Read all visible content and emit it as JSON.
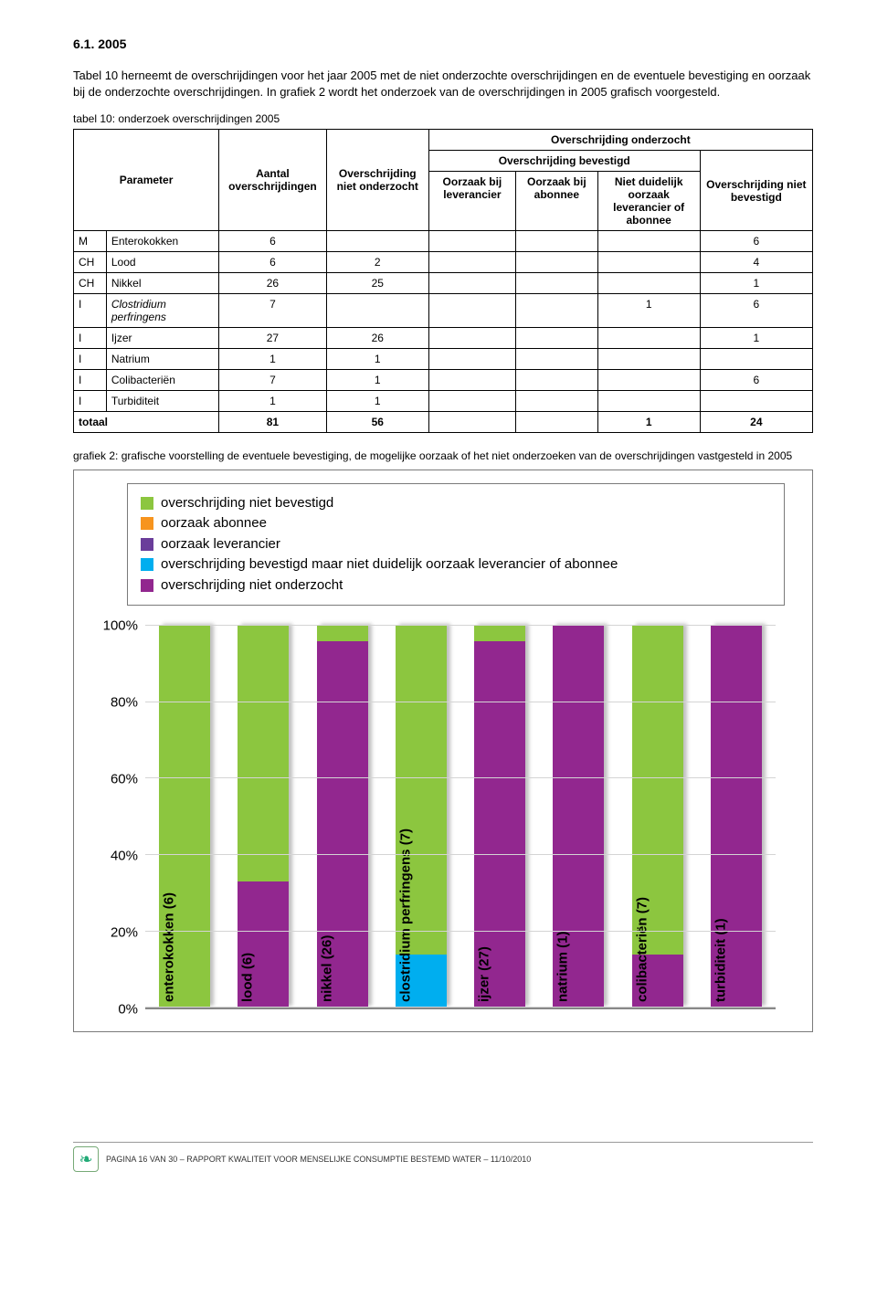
{
  "section_number": "6.1. 2005",
  "intro_para": "Tabel 10 herneemt de overschrijdingen voor het jaar 2005 met de niet onderzochte overschrijdingen en de eventuele bevestiging en oorzaak bij de onderzochte overschrijdingen. In grafiek 2 wordt het onderzoek van de overschrijdingen in 2005 grafisch voorgesteld.",
  "table_caption": "tabel 10: onderzoek overschrijdingen 2005",
  "headers": {
    "param": "Parameter",
    "aantal": "Aantal overschrijdingen",
    "niet_onderzocht": "Overschrijding niet onderzocht",
    "onderzocht": "Overschrijding onderzocht",
    "bevestigd": "Overschrijding bevestigd",
    "niet_bevestigd": "Overschrijding niet bevestigd",
    "oorz_lev": "Oorzaak bij leverancier",
    "oorz_ab": "Oorzaak bij abonnee",
    "oorz_nd": "Niet duidelijk oorzaak leverancier of abonnee"
  },
  "rows": [
    {
      "cat": "M",
      "param": "Enterokokken",
      "aantal": "6",
      "no": "",
      "lev": "",
      "ab": "",
      "nd": "",
      "nb": "6",
      "italic": false
    },
    {
      "cat": "CH",
      "param": "Lood",
      "aantal": "6",
      "no": "2",
      "lev": "",
      "ab": "",
      "nd": "",
      "nb": "4",
      "italic": false
    },
    {
      "cat": "CH",
      "param": "Nikkel",
      "aantal": "26",
      "no": "25",
      "lev": "",
      "ab": "",
      "nd": "",
      "nb": "1",
      "italic": false
    },
    {
      "cat": "I",
      "param": "Clostridium perfringens",
      "aantal": "7",
      "no": "",
      "lev": "",
      "ab": "",
      "nd": "1",
      "nb": "6",
      "italic": true
    },
    {
      "cat": "I",
      "param": "Ijzer",
      "aantal": "27",
      "no": "26",
      "lev": "",
      "ab": "",
      "nd": "",
      "nb": "1",
      "italic": false
    },
    {
      "cat": "I",
      "param": "Natrium",
      "aantal": "1",
      "no": "1",
      "lev": "",
      "ab": "",
      "nd": "",
      "nb": "",
      "italic": false
    },
    {
      "cat": "I",
      "param": "Colibacteriën",
      "aantal": "7",
      "no": "1",
      "lev": "",
      "ab": "",
      "nd": "",
      "nb": "6",
      "italic": false
    },
    {
      "cat": "I",
      "param": "Turbiditeit",
      "aantal": "1",
      "no": "1",
      "lev": "",
      "ab": "",
      "nd": "",
      "nb": "",
      "italic": false
    }
  ],
  "total_row": {
    "label": "totaal",
    "aantal": "81",
    "no": "56",
    "lev": "",
    "ab": "",
    "nd": "1",
    "nb": "24"
  },
  "chart_caption": "grafiek 2: grafische voorstelling de eventuele bevestiging, de mogelijke oorzaak of het niet onderzoeken van de overschrijdingen vastgesteld in 2005",
  "legend": [
    {
      "label": "overschrijding niet bevestigd",
      "color": "#8cc63f"
    },
    {
      "label": "oorzaak abonnee",
      "color": "#f7941e"
    },
    {
      "label": "oorzaak leverancier",
      "color": "#6a3d9a"
    },
    {
      "label": "overschrijding bevestigd maar niet duidelijk oorzaak leverancier of abonnee",
      "color": "#00aeef"
    },
    {
      "label": "overschrijding niet onderzocht",
      "color": "#92278f"
    }
  ],
  "chart": {
    "yticks": [
      "0%",
      "20%",
      "40%",
      "60%",
      "80%",
      "100%"
    ],
    "bars": [
      {
        "label": "enterokokken (6)",
        "segments": [
          {
            "c": "#8cc63f",
            "v": 100
          }
        ]
      },
      {
        "label": "lood (6)",
        "segments": [
          {
            "c": "#92278f",
            "v": 33
          },
          {
            "c": "#8cc63f",
            "v": 67
          }
        ]
      },
      {
        "label": "nikkel (26)",
        "segments": [
          {
            "c": "#92278f",
            "v": 96
          },
          {
            "c": "#8cc63f",
            "v": 4
          }
        ]
      },
      {
        "label": "clostridium perfringens (7)",
        "segments": [
          {
            "c": "#00aeef",
            "v": 14
          },
          {
            "c": "#8cc63f",
            "v": 86
          }
        ]
      },
      {
        "label": "ijzer (27)",
        "segments": [
          {
            "c": "#92278f",
            "v": 96
          },
          {
            "c": "#8cc63f",
            "v": 4
          }
        ]
      },
      {
        "label": "natrium (1)",
        "segments": [
          {
            "c": "#92278f",
            "v": 100
          }
        ]
      },
      {
        "label": "colibacteriën (7)",
        "segments": [
          {
            "c": "#92278f",
            "v": 14
          },
          {
            "c": "#8cc63f",
            "v": 86
          }
        ]
      },
      {
        "label": "turbiditeit (1)",
        "segments": [
          {
            "c": "#92278f",
            "v": 100
          }
        ]
      }
    ]
  },
  "footer": "PAGINA 16 VAN 30 – RAPPORT KWALITEIT VOOR MENSELIJKE CONSUMPTIE BESTEMD WATER – 11/10/2010"
}
